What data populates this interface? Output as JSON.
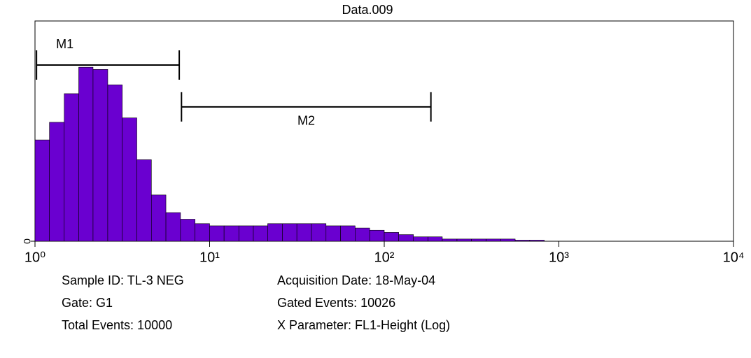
{
  "chart_data": {
    "type": "histogram",
    "title": "Data.009",
    "log_x": true,
    "color": "#6a00d0",
    "bins": [
      1,
      1.21,
      1.47,
      1.78,
      2.15,
      2.61,
      3.16,
      3.83,
      4.64,
      5.62,
      6.81,
      8.25,
      10,
      12.1,
      14.7,
      17.8,
      21.5,
      26.1,
      31.6,
      38.3,
      46.4,
      56.2,
      68.1,
      82.5,
      100,
      121,
      147,
      178,
      215,
      261,
      316,
      383,
      464,
      562,
      681,
      825,
      1000
    ],
    "values": [
      46,
      54,
      67,
      79,
      78,
      71,
      56,
      37,
      21,
      13,
      10,
      8,
      7,
      7,
      7,
      7,
      8,
      8,
      8,
      8,
      7,
      7,
      6,
      5,
      4,
      3,
      2,
      2,
      1,
      1,
      1,
      1,
      1,
      0.5,
      0.5,
      0
    ],
    "xlim": [
      1,
      10000
    ],
    "xticks": [
      {
        "value": 1,
        "label": "10⁰"
      },
      {
        "value": 10,
        "label": "10¹"
      },
      {
        "value": 100,
        "label": "10²"
      },
      {
        "value": 1000,
        "label": "10³"
      },
      {
        "value": 10000,
        "label": "10⁴"
      }
    ],
    "ylim": [
      0,
      100
    ],
    "yticks": [
      0
    ],
    "markers": [
      {
        "label": "M1",
        "x": [
          1.02,
          6.7
        ],
        "y": 80
      },
      {
        "label": "M2",
        "x": [
          6.9,
          185
        ],
        "y": 61
      }
    ],
    "info": [
      [
        "Sample ID: TL-3 NEG",
        "Acquisition Date: 18-May-04"
      ],
      [
        "Gate: G1",
        "Gated Events: 10026"
      ],
      [
        "Total Events: 10000",
        "X Parameter: FL1-Height (Log)"
      ]
    ]
  }
}
